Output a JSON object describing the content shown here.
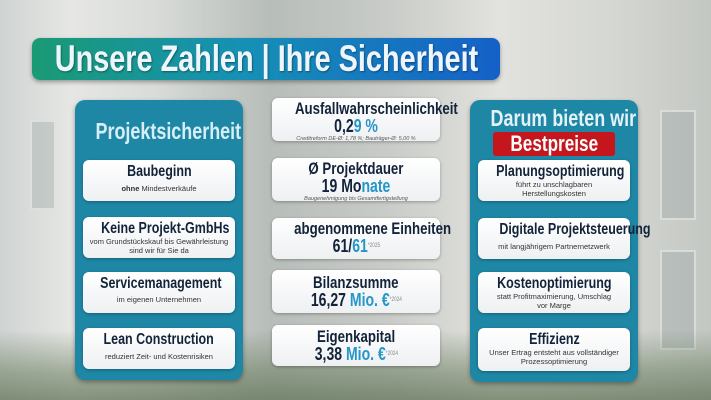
{
  "title": "Unsere Zahlen | Ihre Sicherheit",
  "colors": {
    "panel": "#1f87a6",
    "accent": "#2596c8",
    "highlight": "#c4161c",
    "heading": "#12233a"
  },
  "left_panel": {
    "title": "Projektsicherheit",
    "items": [
      {
        "heading": "Baubeginn",
        "bold": "ohne",
        "text": " Mindestverkäufe"
      },
      {
        "heading": "Keine Projekt-GmbHs",
        "text": "vom Grundstückskauf bis Gewährleistung sind wir für Sie da"
      },
      {
        "heading": "Servicemanagement",
        "text": "im eigenen Unternehmen"
      },
      {
        "heading": "Lean Construction",
        "text": "reduziert Zeit- und Kostenrisiken"
      }
    ]
  },
  "middle": [
    {
      "heading": "Ausfallwahrscheinlichkeit",
      "value": "0,2",
      "value_accent": "9 %",
      "note": "Creditreform DE-Ø: 1,78 %; Bauträger-Ø: 5,00 %"
    },
    {
      "heading": "Ø Projektdauer",
      "value": "19 Mo",
      "value_accent": "nate",
      "note": "Baugenehmigung bis Gesamtfertigstellung"
    },
    {
      "heading": "abgenommene Einheiten",
      "value": "61/",
      "value_accent": "61",
      "sup": "*2025"
    },
    {
      "heading": "Bilanzsumme",
      "value": "16,27 ",
      "value_accent": "Mio. €",
      "sup": "*2024"
    },
    {
      "heading": "Eigenkapital",
      "value": "3,38 ",
      "value_accent": "Mio. €",
      "sup": "*2024"
    }
  ],
  "right_panel": {
    "title": "Darum bieten wir",
    "badge": "Bestpreise",
    "items": [
      {
        "heading": "Planungsoptimierung",
        "text": "führt zu unschlagbaren Herstellungskosten"
      },
      {
        "heading": "Digitale Projektsteuerung",
        "text": "mit langjährigem Partnernetzwerk"
      },
      {
        "heading": "Kostenoptimierung",
        "text": "statt Profitmaximierung, Umschlag vor Marge"
      },
      {
        "heading": "Effizienz",
        "text": "Unser Ertrag entsteht aus vollständiger Prozessoptimierung"
      }
    ]
  }
}
